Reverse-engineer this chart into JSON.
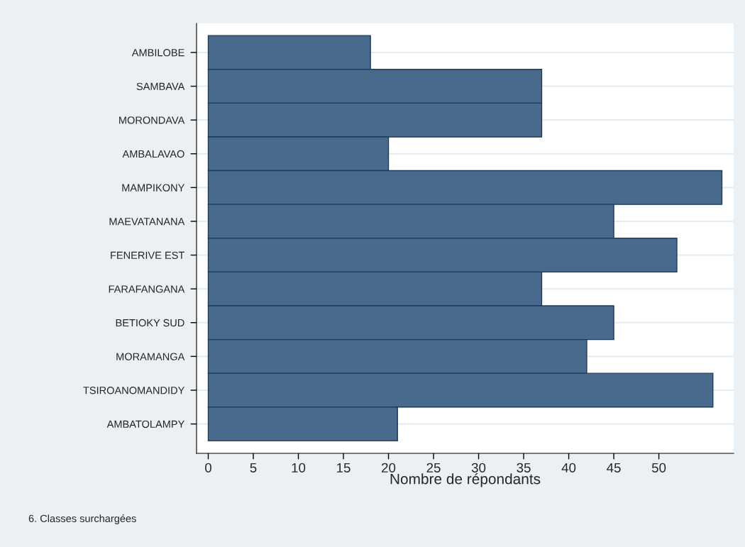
{
  "chart_data": {
    "type": "bar",
    "orientation": "horizontal",
    "categories": [
      "AMBILOBE",
      "SAMBAVA",
      "MORONDAVA",
      "AMBALAVAO",
      "MAMPIKONY",
      "MAEVATANANA",
      "FENERIVE EST",
      "FARAFANGANA",
      "BETIOKY SUD",
      "MORAMANGA",
      "TSIROANOMANDIDY",
      "AMBATOLAMPY"
    ],
    "values": [
      18,
      37,
      37,
      20,
      57,
      45,
      52,
      37,
      45,
      42,
      56,
      21
    ],
    "color": "#486a8c",
    "xlim": [
      -1.3,
      58.3
    ],
    "xticks": [
      0,
      5,
      10,
      15,
      20,
      25,
      30,
      35,
      40,
      45,
      50
    ],
    "xlabel": "Nombre de répondants",
    "grid": "y",
    "annotations": [
      "6. Classes surchargées"
    ]
  }
}
